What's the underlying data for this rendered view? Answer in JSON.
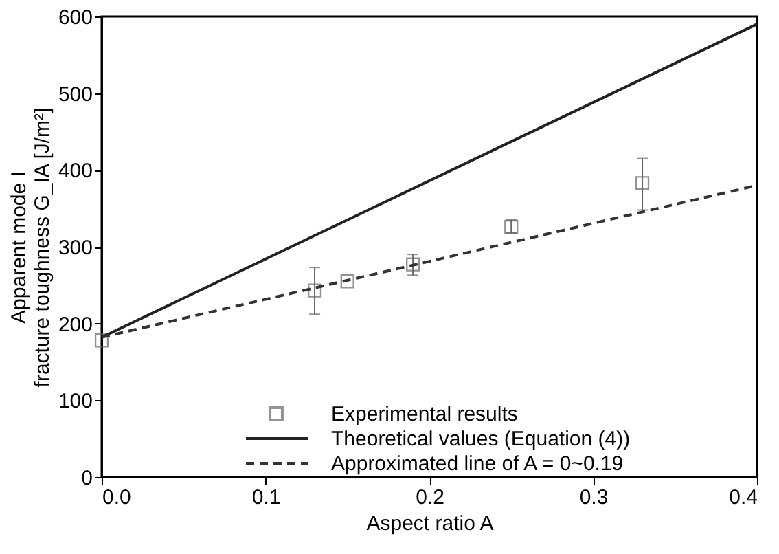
{
  "chart_data": {
    "type": "line",
    "xlabel": "Aspect ratio A",
    "ylabel": "Apparent mode I\nfracture toughness G_IA [J/m²]",
    "xlim": [
      0,
      0.4
    ],
    "xticks": [
      {
        "value": 0,
        "label": "0.0"
      },
      {
        "value": 0.1,
        "label": "0.1"
      },
      {
        "value": 0.2,
        "label": "0.2"
      },
      {
        "value": 0.3,
        "label": "0.3"
      },
      {
        "value": 0.4,
        "label": "0.4"
      }
    ],
    "ylim": [
      0,
      600
    ],
    "yticks": [
      0,
      100,
      200,
      300,
      400,
      500,
      600
    ],
    "grid": false,
    "legend": "bottom right",
    "series": [
      {
        "name": "Experimental results",
        "type": "scatter",
        "marker": "square",
        "color": "#666666",
        "x": [
          0,
          0.13,
          0.15,
          0.19,
          0.25,
          0.33
        ],
        "values": [
          178,
          243,
          255,
          277,
          326,
          383
        ],
        "errors": [
          null,
          [
            212,
            273
          ],
          null,
          [
            263,
            290
          ],
          [
            318,
            335
          ],
          [
            348,
            415
          ]
        ]
      },
      {
        "name": "Theoretical values (Equation (4))",
        "line_style": "solid",
        "color": "#222222",
        "x": [
          0,
          0.4
        ],
        "values": [
          182,
          590
        ]
      },
      {
        "name": "Approximated line of A = 0~0.19",
        "line_style": "dashed",
        "color": "#333333",
        "x": [
          0,
          0.4
        ],
        "values": [
          182,
          380
        ]
      }
    ]
  }
}
